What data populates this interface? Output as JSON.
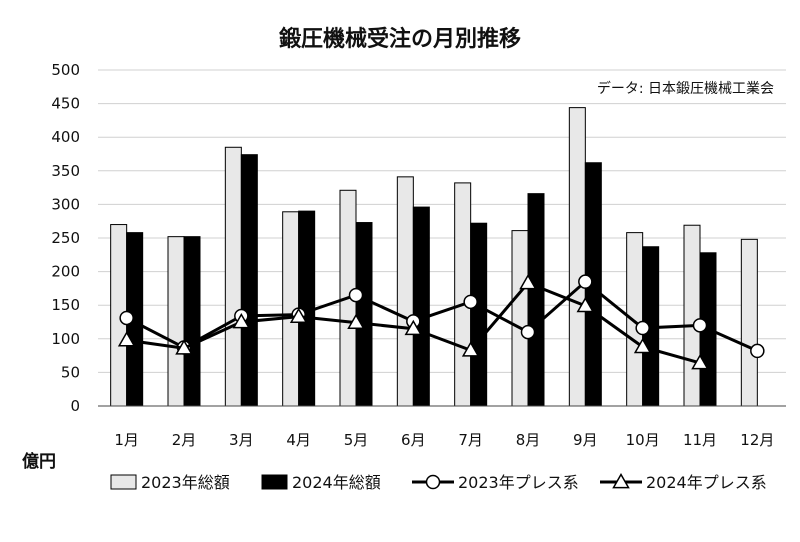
{
  "chart_data": {
    "type": "bar",
    "title": "鍛圧機械受注の月別推移",
    "source": "データ: 日本鍛圧機械工業会",
    "ylabel": "億円",
    "ylim": [
      0,
      500
    ],
    "yticks": [
      0,
      50,
      100,
      150,
      200,
      250,
      300,
      350,
      400,
      450,
      500
    ],
    "grid": true,
    "legend_position": "bottom",
    "categories": [
      "1月",
      "2月",
      "3月",
      "4月",
      "5月",
      "6月",
      "7月",
      "8月",
      "9月",
      "10月",
      "11月",
      "12月"
    ],
    "series": [
      {
        "name": "2023年総額",
        "kind": "bar",
        "color": "#e8e8e8",
        "values": [
          270,
          252,
          385,
          289,
          321,
          341,
          332,
          261,
          444,
          258,
          269,
          248
        ]
      },
      {
        "name": "2024年総額",
        "kind": "bar",
        "color": "#000000",
        "values": [
          258,
          252,
          374,
          290,
          273,
          296,
          272,
          316,
          362,
          237,
          228,
          null
        ]
      },
      {
        "name": "2023年プレス系",
        "kind": "line",
        "marker": "circle",
        "values": [
          131,
          87,
          134,
          136,
          165,
          126,
          155,
          110,
          185,
          116,
          120,
          82
        ]
      },
      {
        "name": "2024年プレス系",
        "kind": "line",
        "marker": "triangle",
        "values": [
          98,
          86,
          125,
          133,
          124,
          115,
          83,
          183,
          149,
          88,
          64,
          null
        ]
      }
    ]
  }
}
